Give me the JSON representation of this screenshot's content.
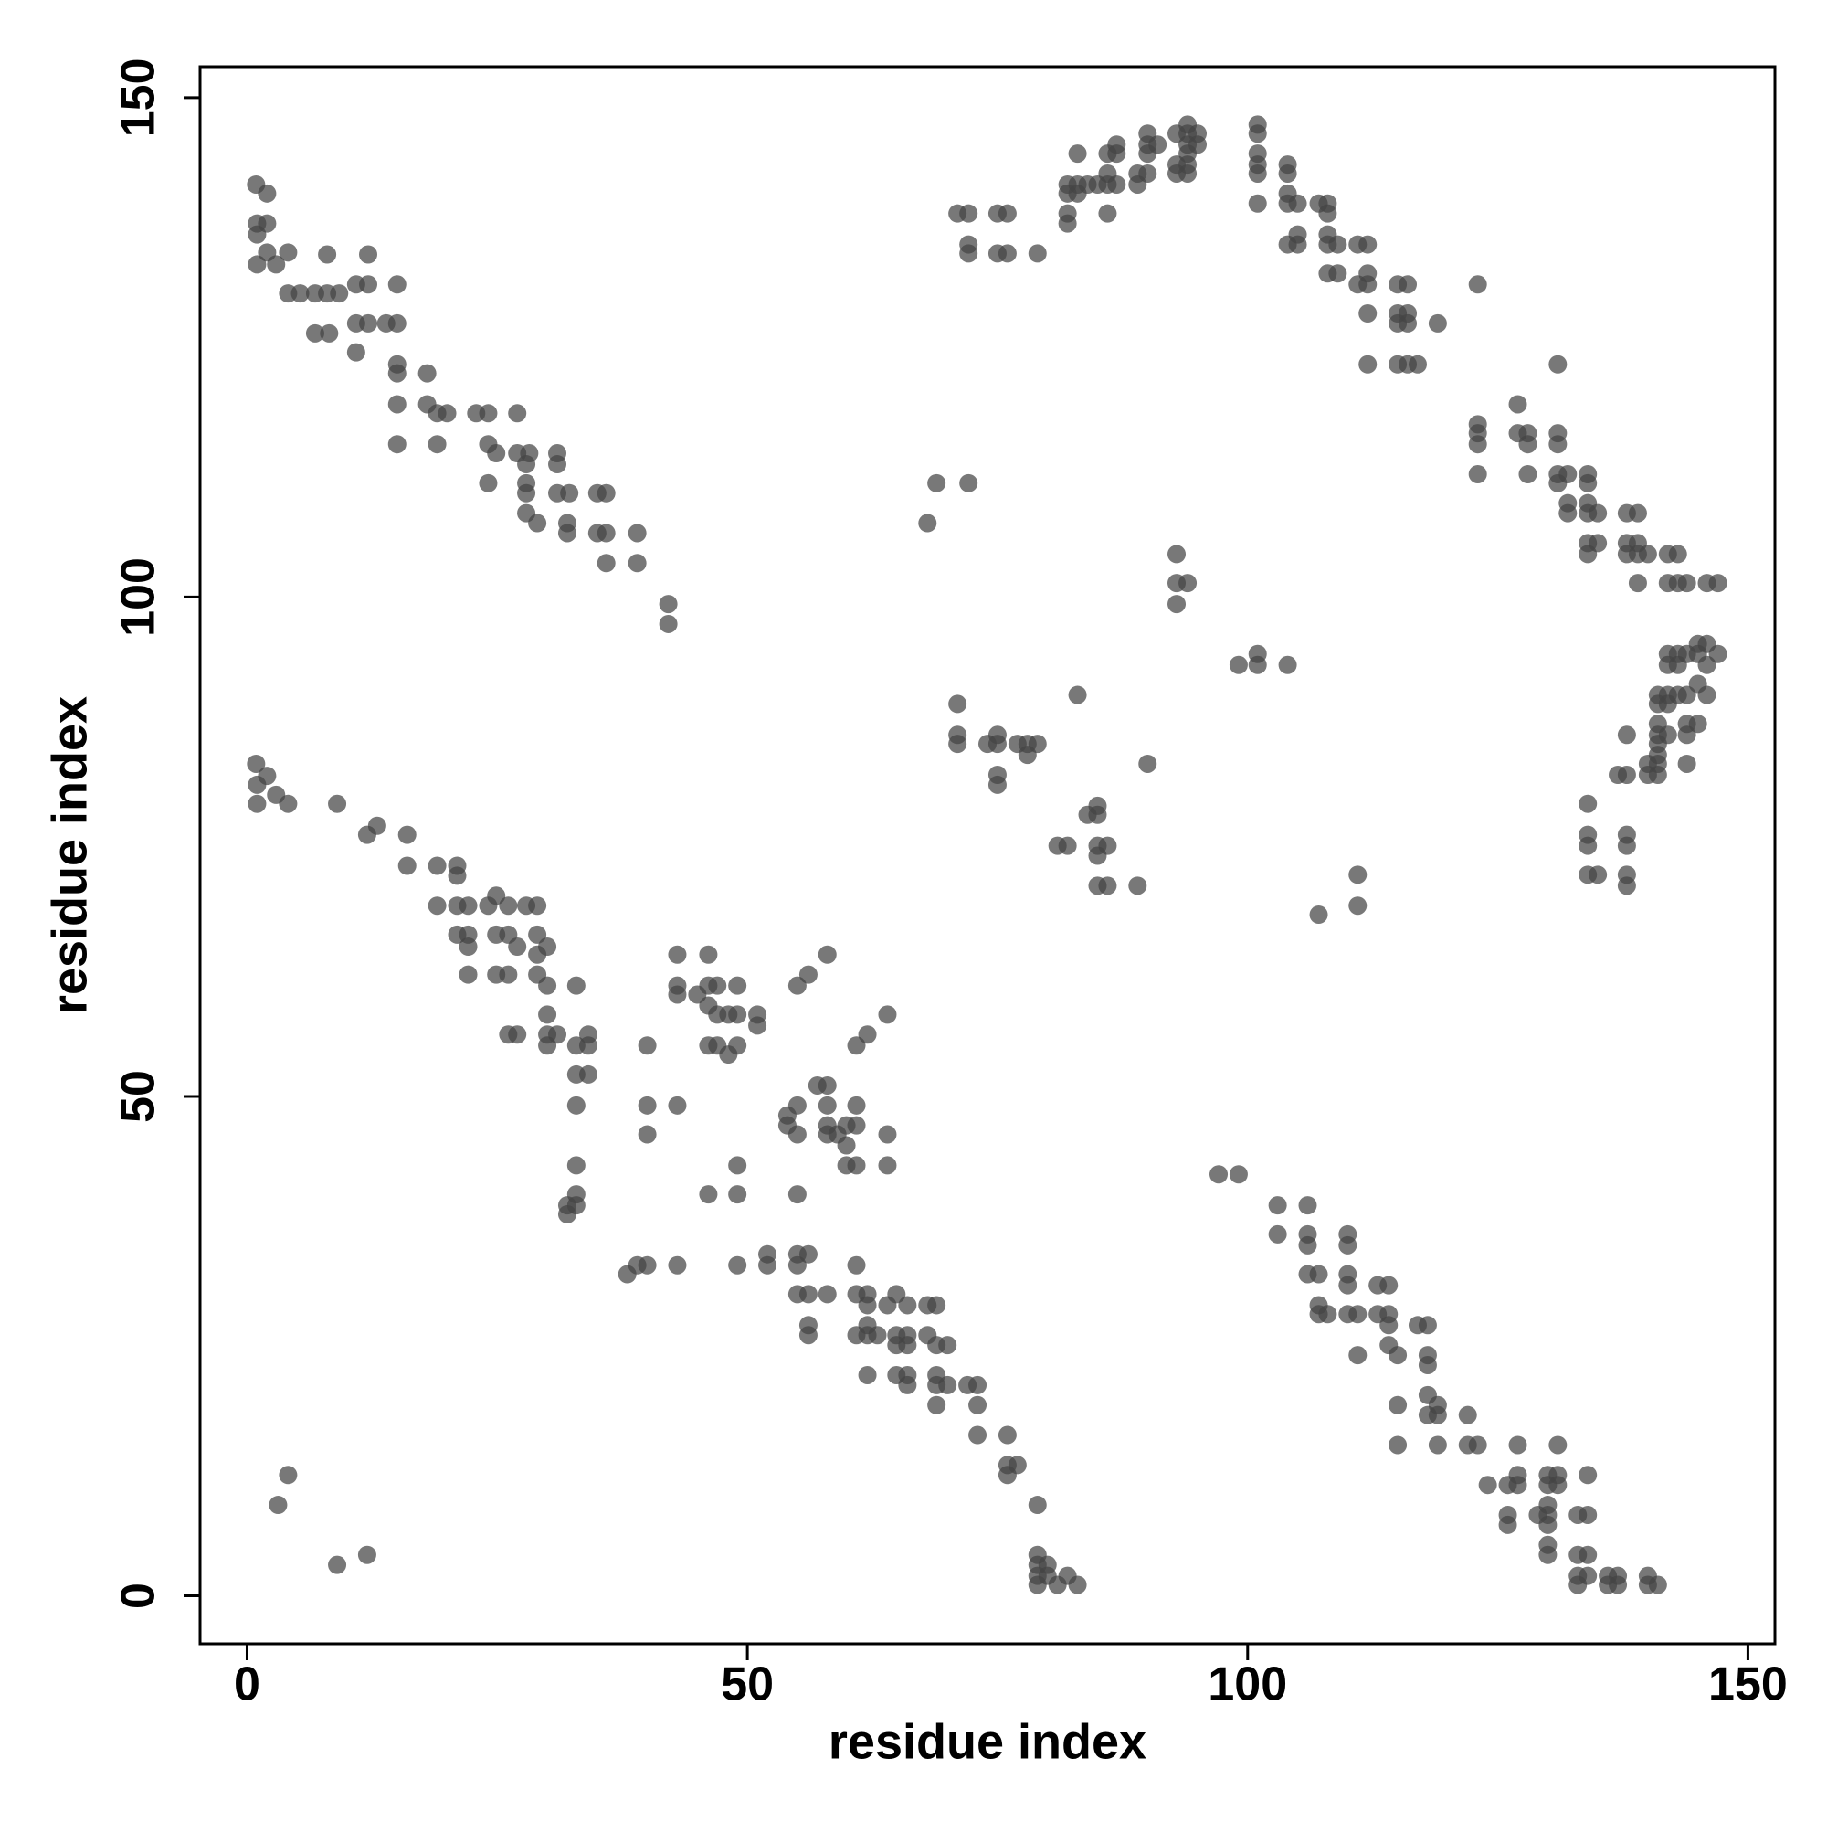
{
  "chart_data": {
    "type": "scatter",
    "xlabel": "residue index",
    "ylabel": "residue index",
    "xlim": [
      -4.7,
      152.7
    ],
    "ylim": [
      -4.8,
      153.1
    ],
    "xticks": [
      0,
      50,
      100,
      150
    ],
    "yticks": [
      0,
      50,
      100,
      150
    ],
    "color": "#444444",
    "grid": false,
    "x": [
      0.9,
      2,
      1,
      2,
      1,
      2,
      1,
      2.9,
      4.1,
      4.1,
      5.3,
      6.8,
      8,
      8,
      6.8,
      8.2,
      9.2,
      10.9,
      12.1,
      12.1,
      10.9,
      12.1,
      10.9,
      13.9,
      15,
      15,
      15,
      15,
      18,
      15,
      18,
      19,
      20,
      19,
      15,
      22.9,
      24.1,
      27,
      24.1,
      24.9,
      27,
      28.2,
      27.9,
      31,
      31,
      24.1,
      27.9,
      27.9,
      31,
      32.2,
      35,
      35.9,
      27.9,
      29,
      32,
      32,
      35,
      35.9,
      39,
      35.9,
      39,
      42.1,
      42.1,
      0.9,
      2,
      1,
      2.9,
      4.1,
      1,
      9,
      12,
      13,
      16,
      16,
      19,
      21,
      21,
      19,
      21,
      22.1,
      21,
      22.1,
      22.1,
      22.1,
      24.1,
      24.9,
      26.1,
      24.9,
      26.1,
      24.9,
      26.1,
      27,
      27.9,
      29,
      29,
      30,
      29,
      29,
      30,
      26.1,
      27,
      30,
      30,
      31,
      30,
      32.9,
      32.9,
      34.1,
      34.1,
      32.9,
      34.1,
      32.9,
      32.9,
      32.9,
      32,
      32.9,
      32,
      43,
      46.1,
      43,
      43,
      45,
      46.1,
      47,
      46.1,
      47,
      48.1,
      49,
      49,
      51,
      51,
      47,
      48.1,
      49,
      46.1,
      40,
      40,
      43,
      40,
      49,
      46.1,
      49,
      55,
      56.1,
      58,
      60.9,
      62,
      64,
      54,
      55,
      54,
      55,
      57,
      58,
      58,
      58,
      58,
      59,
      59.9,
      60.9,
      60.9,
      59.9,
      59.9,
      60.9,
      64,
      64,
      55,
      38,
      39,
      40,
      43,
      49,
      52,
      52,
      55,
      56.1,
      55,
      55,
      56.1,
      58,
      60.9,
      56.1,
      56.1,
      60.9,
      62,
      62,
      60.9,
      62,
      62,
      64,
      64.9,
      66,
      63,
      64.9,
      66,
      64.9,
      66,
      62,
      64.9,
      66,
      66,
      68,
      68.9,
      68,
      68.9,
      70,
      68.9,
      68.9,
      70,
      68.9,
      72,
      73,
      73,
      73,
      76,
      76,
      77,
      76,
      79,
      79,
      79,
      80,
      79,
      80,
      82,
      79,
      81,
      83,
      4.1,
      3.1,
      9,
      12,
      97.1,
      99.1,
      103,
      106,
      103,
      106,
      106,
      110,
      110,
      106,
      107.1,
      110,
      110,
      113,
      114.1,
      107.1,
      107.1,
      108,
      110,
      111,
      113,
      114.1,
      114.1,
      117,
      118,
      114.1,
      115,
      111,
      118,
      118,
      118,
      119,
      118,
      119,
      115,
      122,
      115,
      119,
      122,
      123,
      127,
      124,
      126,
      127,
      127,
      126,
      126,
      130,
      131,
      131,
      130,
      131,
      129,
      130,
      130,
      130,
      130,
      130,
      133,
      134,
      134,
      133,
      134,
      133,
      133,
      134,
      136,
      137,
      136,
      137,
      140,
      140,
      141,
      71,
      72.1,
      72.1,
      72.1,
      75,
      76,
      75,
      76,
      79,
      82,
      83,
      82,
      83,
      82,
      82,
      83,
      84,
      85,
      86,
      86,
      86,
      86,
      86.9,
      86.9,
      86.9,
      89,
      89,
      90,
      90,
      90,
      90,
      91,
      92.9,
      92.9,
      92.9,
      94,
      94,
      94,
      94,
      94,
      94,
      95,
      95,
      101,
      101,
      101,
      101,
      101,
      101,
      104,
      104,
      104,
      104,
      105,
      104,
      105,
      105,
      107.1,
      108,
      108,
      108,
      108,
      109,
      108,
      109,
      111,
      112,
      112,
      111,
      112,
      112,
      115,
      116,
      115,
      116,
      115,
      116,
      119,
      112,
      115,
      116,
      117,
      123,
      131,
      127,
      123,
      123,
      123,
      123,
      127,
      128,
      128,
      131,
      131,
      128,
      131,
      132,
      131,
      132,
      132,
      134,
      134,
      134,
      134,
      135,
      134,
      135,
      134,
      137.9,
      139,
      137.9,
      139,
      137.9,
      139,
      140,
      139,
      142,
      143,
      142,
      143,
      143.9,
      145.9,
      147,
      142,
      143,
      143.9,
      145,
      145.9,
      147,
      145,
      142,
      143,
      145.9,
      145,
      141,
      142,
      143,
      143.9,
      145.9,
      141,
      142,
      141,
      143.9,
      145,
      141,
      142,
      143.9,
      137.9,
      141,
      141,
      140,
      141,
      143.9,
      137,
      137.9,
      140,
      141,
      134,
      134,
      134,
      137.9,
      137.9,
      134,
      135,
      137.9,
      137.9,
      68.9,
      72.1,
      68,
      92.9,
      92.9,
      94,
      92.9,
      99.1,
      101,
      101,
      104,
      83,
      71,
      71,
      71,
      74,
      75,
      75,
      77,
      78,
      79,
      78,
      75,
      75,
      90,
      81,
      82,
      84,
      85,
      85,
      85,
      86,
      85,
      85,
      86,
      89,
      111,
      111,
      107.1
    ],
    "values": [
      141.3,
      140.4,
      137.4,
      137.4,
      136.3,
      134.5,
      133.3,
      133.3,
      134.5,
      130.4,
      130.4,
      130.4,
      130.4,
      134.3,
      126.4,
      126.4,
      130.4,
      131.3,
      131.3,
      134.3,
      127.4,
      127.4,
      124.5,
      127.4,
      131.3,
      127.4,
      123.3,
      122.4,
      122.4,
      119.3,
      119.3,
      118.4,
      118.4,
      115.3,
      115.3,
      118.4,
      118.4,
      118.4,
      115.3,
      114.4,
      114.4,
      114.4,
      113.3,
      114.4,
      113.3,
      111.4,
      111.4,
      110.4,
      110.4,
      110.4,
      110.4,
      110.4,
      108.4,
      107.4,
      107.4,
      106.4,
      106.4,
      106.4,
      106.4,
      103.4,
      103.4,
      99.3,
      97.3,
      83.3,
      82.1,
      81.2,
      80.2,
      79.3,
      79.3,
      79.3,
      76.2,
      77.1,
      76.2,
      73.1,
      73.1,
      73.1,
      72.1,
      69.1,
      69.1,
      69.1,
      66.2,
      66.2,
      65,
      62.2,
      69.1,
      70.1,
      69.1,
      66.2,
      66.2,
      62.2,
      62.2,
      65,
      69.1,
      69.1,
      66.2,
      65,
      64.2,
      62.2,
      61.1,
      56.2,
      56.2,
      58.2,
      56.2,
      56.2,
      55.1,
      61.1,
      55.1,
      55.1,
      56.2,
      52.2,
      52.2,
      49.1,
      43.1,
      40.2,
      39.1,
      39.1,
      38.2,
      64.2,
      64.2,
      61.1,
      60.2,
      60.2,
      61.1,
      61.1,
      59.1,
      58.2,
      58.2,
      58.2,
      61.1,
      58.2,
      57.1,
      55.1,
      54.2,
      55.1,
      55.1,
      55.1,
      49.1,
      49.1,
      46.2,
      43.1,
      40.2,
      40.2,
      61.1,
      62.2,
      64.2,
      55.1,
      56.2,
      58.2,
      48.1,
      49.1,
      47.1,
      46.2,
      51.1,
      51.1,
      49.1,
      47.1,
      46.2,
      46.2,
      47.1,
      49.1,
      47.1,
      45.1,
      43.1,
      43.1,
      46.2,
      43.1,
      40.2,
      32.2,
      33.1,
      33.1,
      33.1,
      33.1,
      34.2,
      33.1,
      34.2,
      34.2,
      33.1,
      30.2,
      30.2,
      30.2,
      33.1,
      27.1,
      26.1,
      30.2,
      30.2,
      29.1,
      26.1,
      26.1,
      27.1,
      29.1,
      30.2,
      29.1,
      26.1,
      26.1,
      26.1,
      25.1,
      25.1,
      22.1,
      22.1,
      22.1,
      21.1,
      29.1,
      29.1,
      26.1,
      25.1,
      25.1,
      22.1,
      21.1,
      21.1,
      19.1,
      21.1,
      21.1,
      19.1,
      16.1,
      16.1,
      13.1,
      13.1,
      12.1,
      9.1,
      4.1,
      3.1,
      3.1,
      2,
      2,
      2,
      1.1,
      1.1,
      1.1,
      12.1,
      9.1,
      3.1,
      4.1,
      42.2,
      42.2,
      39.1,
      39.1,
      36.2,
      36.2,
      35.1,
      36.2,
      35.1,
      32.2,
      32.2,
      32.2,
      31.1,
      31.1,
      31.1,
      29.1,
      28.2,
      28.2,
      28.2,
      28.2,
      28.2,
      28.2,
      27.1,
      27.1,
      27.1,
      25.1,
      24.1,
      24.1,
      24.1,
      23.1,
      20.1,
      19.1,
      18.1,
      18.1,
      19.1,
      18.1,
      15.1,
      15.1,
      15.1,
      15.1,
      15.1,
      11.1,
      11.1,
      12.1,
      11.1,
      8.1,
      7.1,
      12.1,
      12.1,
      15.1,
      11.1,
      11.1,
      8.1,
      9.1,
      8.1,
      7.1,
      5.1,
      4.1,
      8.1,
      8.1,
      12.1,
      4.1,
      4.1,
      2,
      1.1,
      2,
      2,
      2,
      1.1,
      1.1,
      2,
      1.1,
      1.1,
      138.4,
      138.4,
      135.3,
      134.4,
      138.4,
      138.4,
      134.4,
      134.4,
      134.4,
      141.3,
      141.3,
      140.4,
      140.4,
      138.4,
      137.4,
      144.4,
      141.3,
      141.3,
      142.4,
      141.3,
      138.4,
      144.4,
      145.3,
      144.4,
      141.3,
      142.4,
      141.3,
      146.4,
      145.3,
      144.4,
      142.4,
      145.3,
      146.4,
      143.3,
      142.4,
      147.3,
      146.4,
      145.3,
      144.4,
      143.3,
      142.4,
      146.4,
      145.3,
      147.3,
      146.4,
      144.4,
      143.3,
      142.4,
      139.4,
      143.3,
      142.4,
      140.4,
      139.4,
      139.4,
      135.3,
      136.3,
      135.3,
      139.4,
      139.4,
      138.4,
      136.3,
      135.3,
      135.3,
      132.4,
      132.4,
      135.3,
      135.3,
      132.4,
      131.3,
      131.3,
      128.4,
      131.3,
      131.3,
      128.4,
      128.4,
      127.4,
      127.4,
      127.4,
      123.3,
      123.3,
      123.3,
      123.3,
      131.3,
      123.3,
      119.3,
      117.3,
      116.4,
      115.3,
      112.3,
      116.4,
      116.4,
      115.3,
      116.4,
      115.3,
      112.3,
      112.3,
      112.3,
      111.4,
      109.4,
      108.4,
      112.3,
      111.4,
      109.4,
      108.4,
      108.4,
      105.4,
      105.4,
      104.3,
      108.4,
      108.4,
      105.4,
      105.4,
      104.3,
      104.3,
      104.3,
      101.4,
      104.3,
      104.3,
      101.4,
      101.4,
      101.4,
      101.4,
      101.4,
      94.3,
      94.3,
      94.3,
      95.3,
      95.3,
      94.3,
      94.3,
      93.2,
      93.2,
      93.2,
      91.3,
      90.2,
      90.2,
      90.2,
      90.2,
      90.2,
      89.3,
      89.3,
      87.3,
      87.3,
      87.3,
      86.2,
      86.2,
      86.2,
      86.2,
      85.3,
      84.2,
      83.3,
      83.3,
      83.3,
      82.2,
      82.2,
      82.2,
      82.2,
      79.3,
      76.2,
      75.1,
      76.2,
      75.1,
      72.2,
      72.2,
      72.2,
      71.1,
      111.4,
      111.4,
      107.4,
      104.3,
      101.4,
      101.4,
      99.3,
      93.2,
      94.3,
      93.2,
      93.2,
      90.2,
      89.3,
      86.2,
      85.3,
      85.3,
      86.2,
      85.3,
      85.3,
      85.3,
      85.3,
      84.2,
      82.2,
      81.2,
      83.3,
      75.1,
      75.1,
      78.2,
      79.1,
      78.2,
      75.1,
      75.1,
      74.1,
      71.1,
      71.1,
      71.1,
      72.2,
      69.1,
      68.2
    ]
  }
}
